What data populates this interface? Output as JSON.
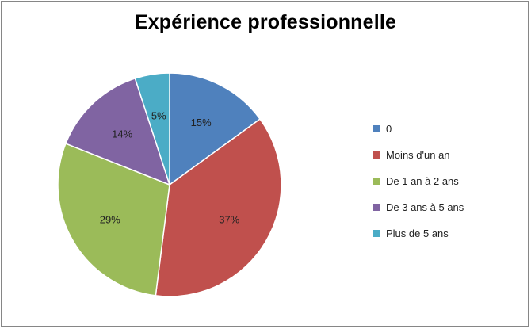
{
  "chart_data": {
    "type": "pie",
    "title": "Expérience professionnelle",
    "categories": [
      "0",
      "Moins d'un an",
      "De 1 an à 2 ans",
      "De 3 ans à 5 ans",
      "Plus de 5 ans"
    ],
    "values": [
      15,
      37,
      29,
      14,
      5
    ],
    "labels": [
      "15%",
      "37%",
      "29%",
      "14%",
      "5%"
    ],
    "colors": [
      "#4f81bd",
      "#c0504d",
      "#9bbb59",
      "#8064a2",
      "#4bacc6"
    ],
    "legend_position": "right"
  }
}
